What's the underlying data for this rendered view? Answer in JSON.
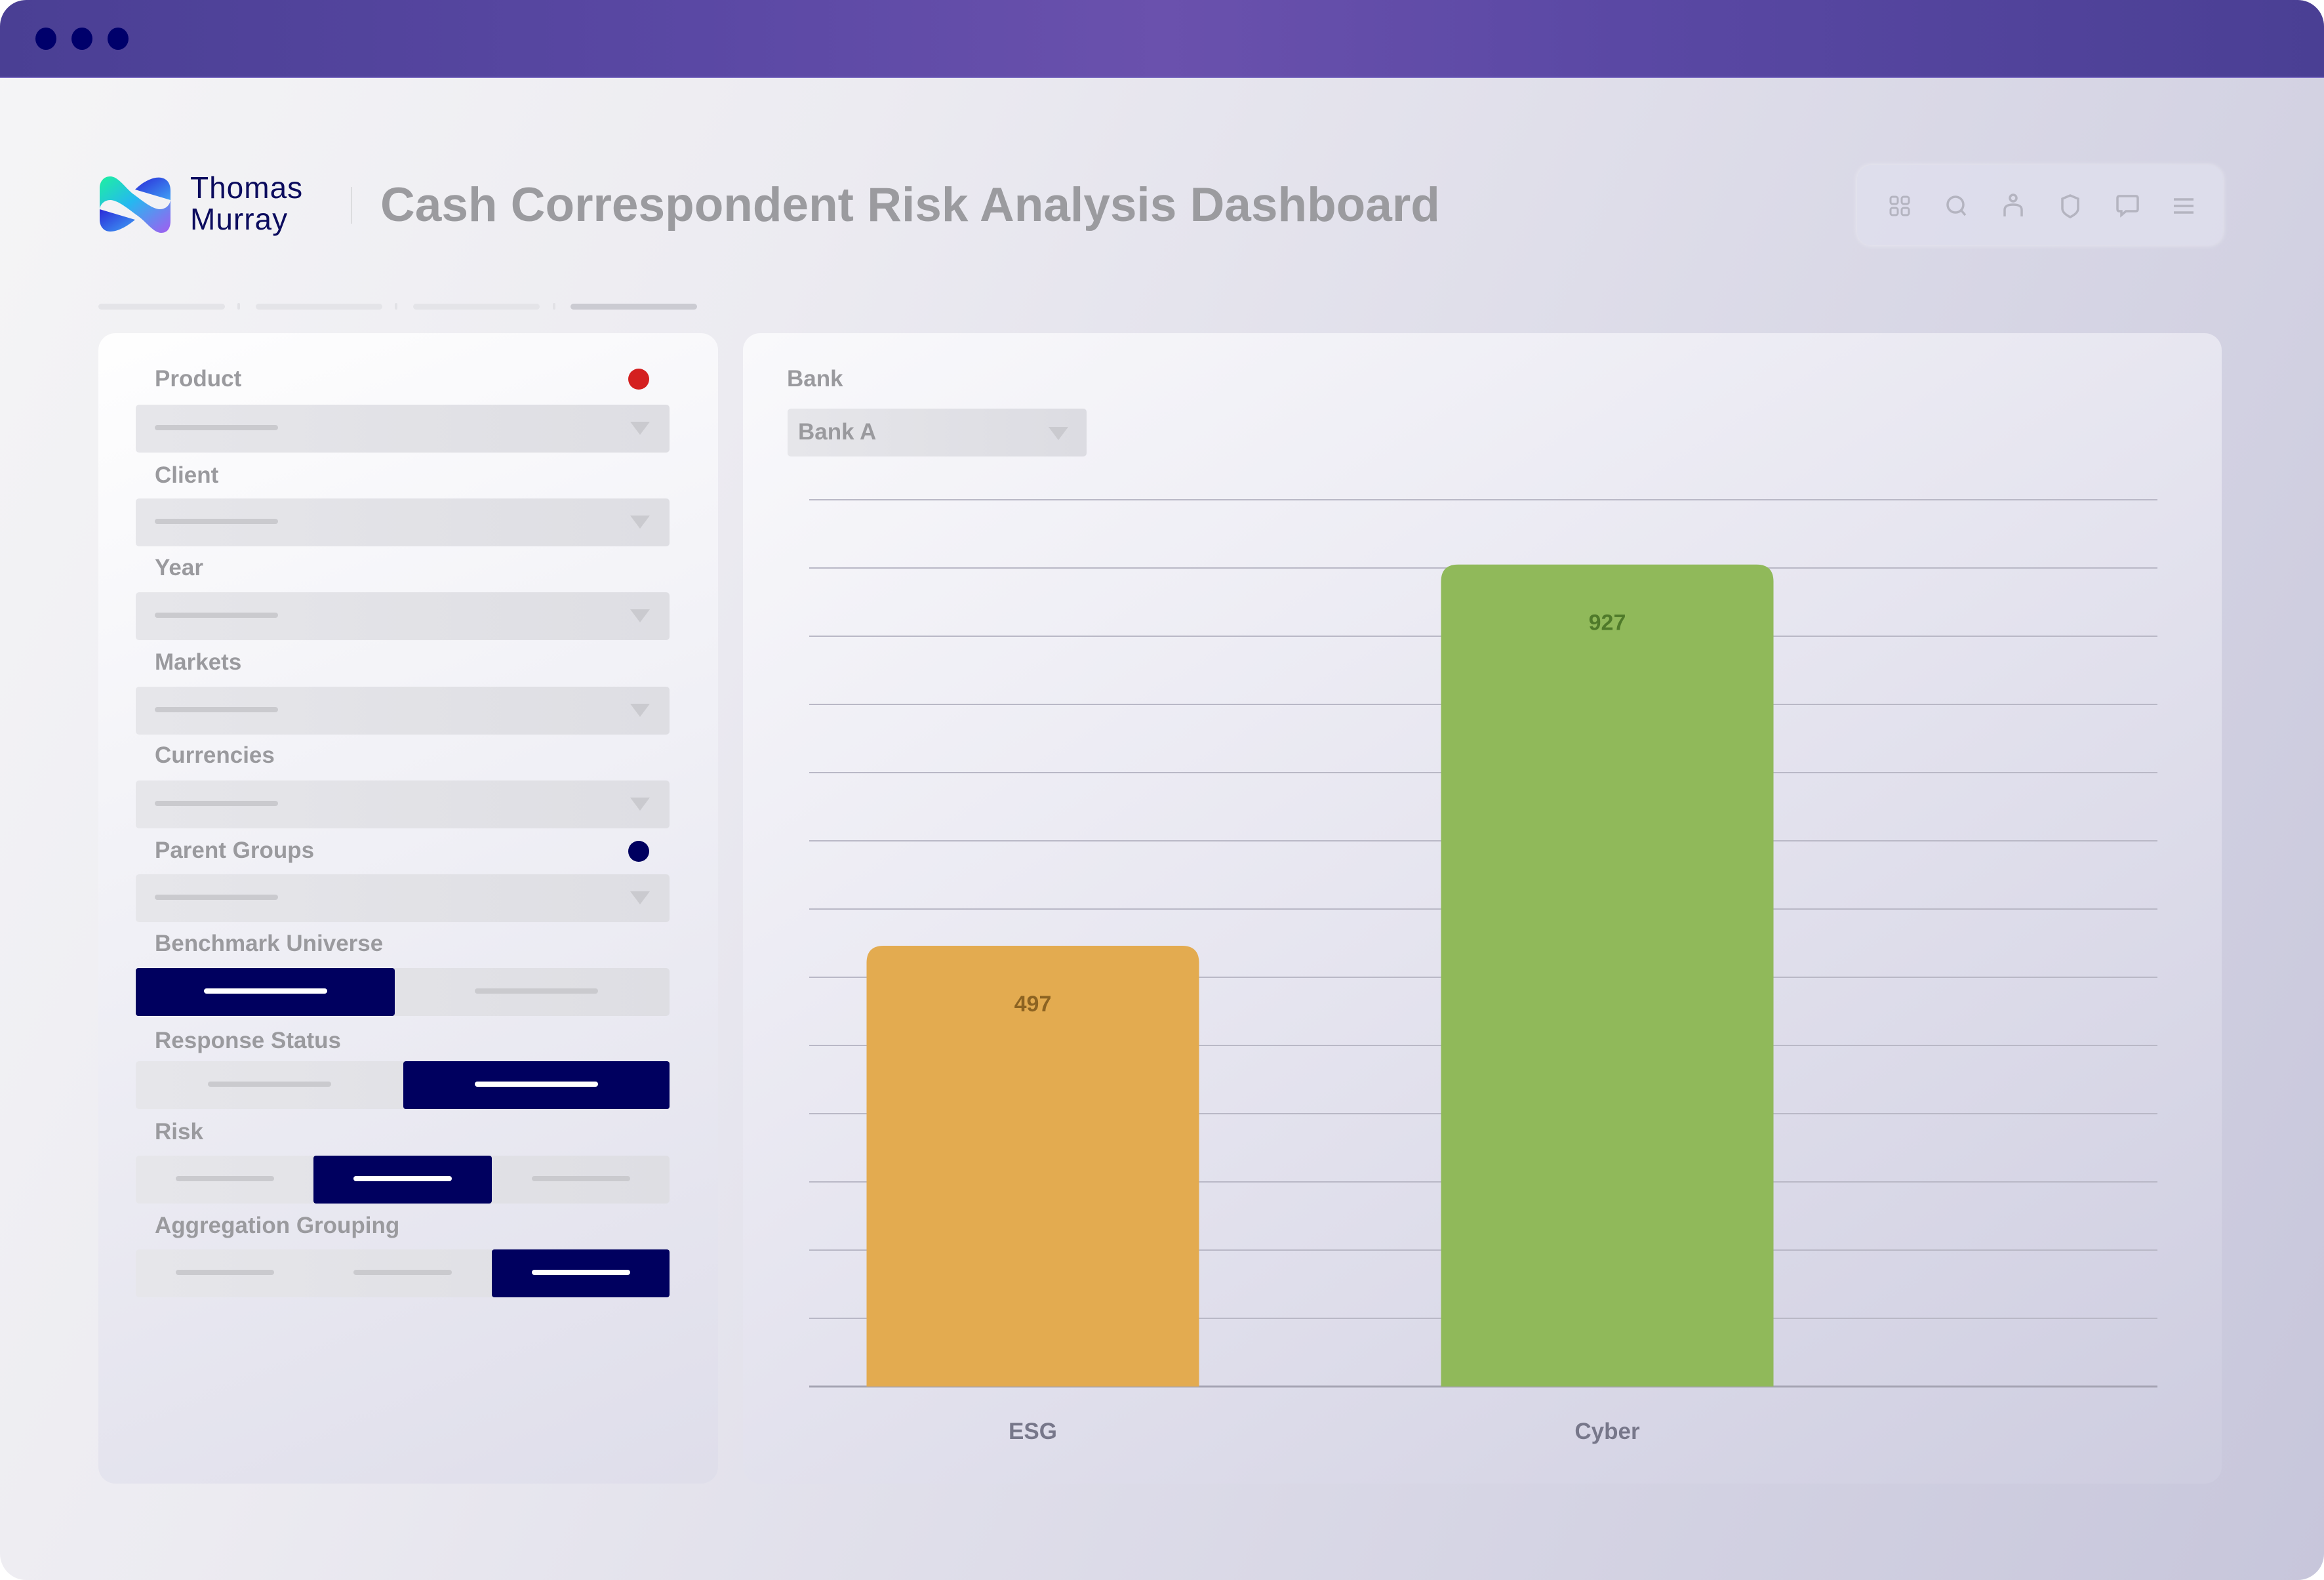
{
  "window": {
    "controls": [
      "dot",
      "dot",
      "dot"
    ],
    "colors": {
      "titlebar": "#5a48a4",
      "dots": "#00006b"
    }
  },
  "header": {
    "brand_line1": "Thomas",
    "brand_line2": "Murray",
    "title": "Cash Correspondent Risk Analysis Dashboard",
    "toolbar_icons": [
      "grid-icon",
      "search-icon",
      "user-icon",
      "shield-icon",
      "chat-icon",
      "menu-icon"
    ]
  },
  "filters": {
    "dropdowns": [
      {
        "label": "Product",
        "indicator": "#d42020"
      },
      {
        "label": "Client"
      },
      {
        "label": "Year"
      },
      {
        "label": "Markets"
      },
      {
        "label": "Currencies"
      },
      {
        "label": "Parent Groups",
        "indicator": "#00005f"
      }
    ],
    "segments": [
      {
        "label": "Benchmark Universe",
        "options": 2,
        "selected": 0
      },
      {
        "label": "Response Status",
        "options": 2,
        "selected": 1
      },
      {
        "label": "Risk",
        "options": 3,
        "selected": 1
      },
      {
        "label": "Aggregation Grouping",
        "options": 3,
        "selected": 2
      }
    ],
    "accent": "#00005f"
  },
  "bank_filter": {
    "label": "Bank",
    "value": "Bank A"
  },
  "chart_data": {
    "type": "bar",
    "title": "",
    "xlabel": "",
    "ylabel": "",
    "categories": [
      "ESG",
      "Cyber"
    ],
    "values": [
      497,
      927
    ],
    "colors": [
      "#e3ab50",
      "#90b95a"
    ],
    "label_colors": [
      "#8c6322",
      "#4f7a2a"
    ],
    "ylim": [
      0,
      1000
    ],
    "gridlines": 14,
    "grid": true,
    "legend": "none"
  }
}
